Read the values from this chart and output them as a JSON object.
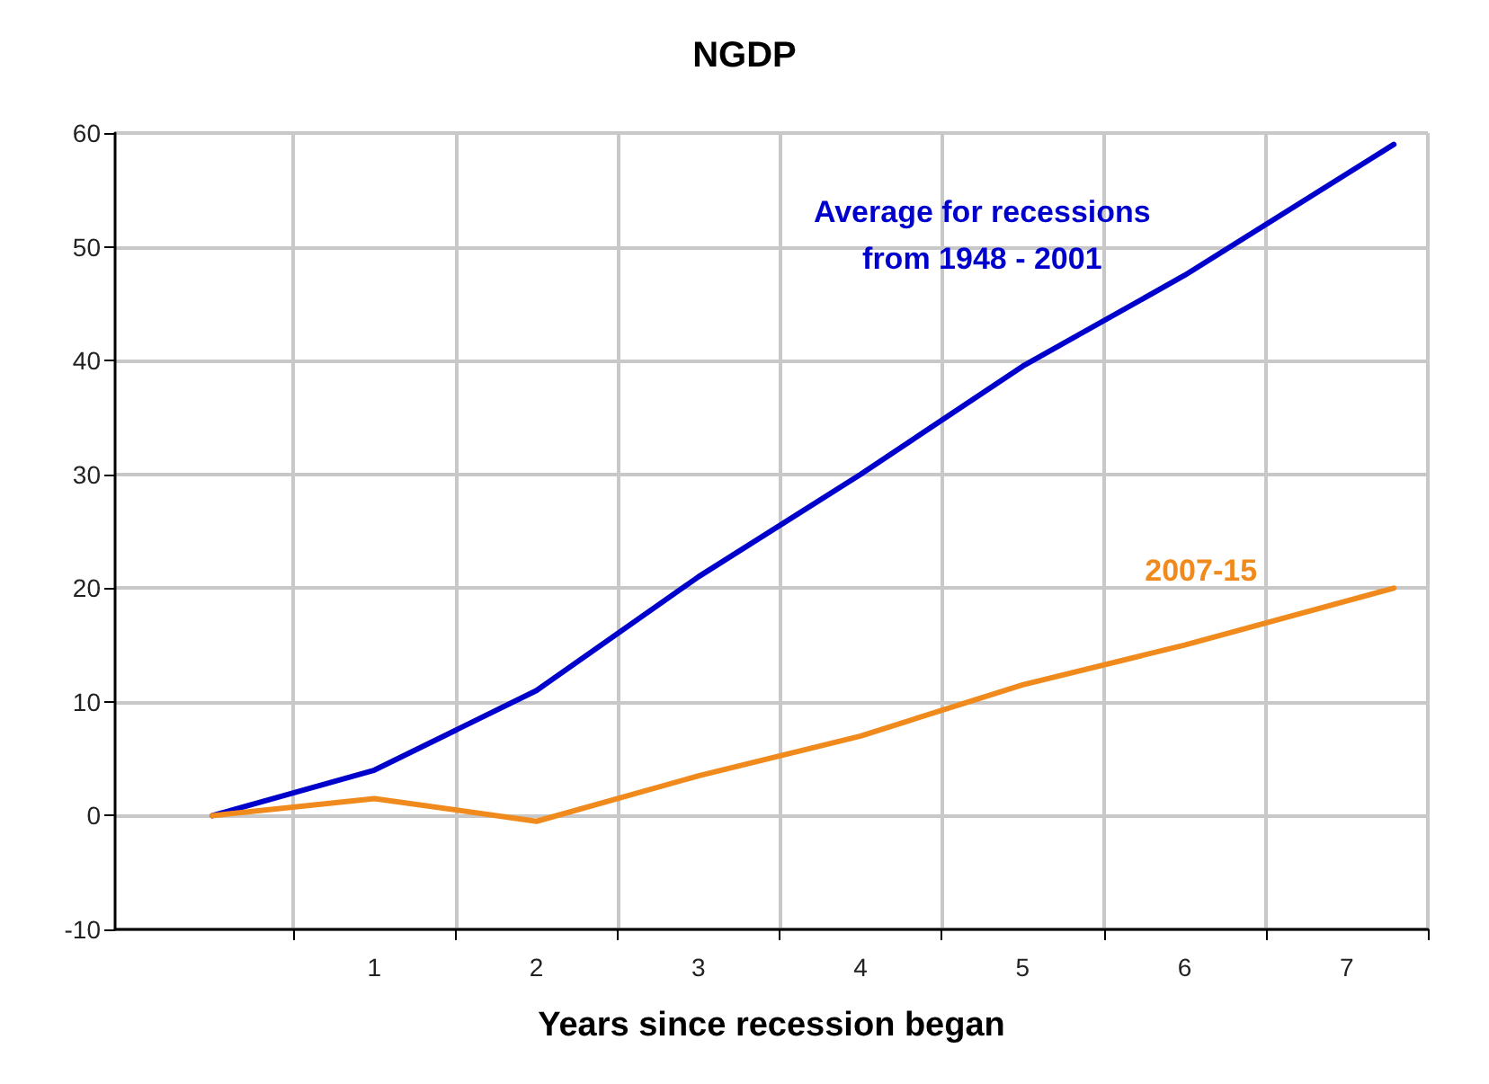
{
  "chart_data": {
    "type": "line",
    "title": "NGDP",
    "xlabel": "Years since recession began",
    "xlim": [
      -0.6,
      7.5
    ],
    "xticks": [
      {
        "value": 0.5,
        "label": null
      },
      {
        "value": 1.5,
        "label": null
      },
      {
        "value": 2.5,
        "label": null
      },
      {
        "value": 3.5,
        "label": null
      },
      {
        "value": 4.5,
        "label": null
      },
      {
        "value": 5.5,
        "label": null
      },
      {
        "value": 6.5,
        "label": null
      },
      {
        "value": 7.5,
        "label": null
      },
      1,
      2,
      3,
      4,
      5,
      6,
      7
    ],
    "ylim": [
      -10,
      60
    ],
    "yticks": [
      -10,
      0,
      10,
      20,
      30,
      40,
      50,
      60
    ],
    "grid": true,
    "legend": false,
    "marker": "none",
    "line_style": "solid",
    "series": [
      {
        "name": "Average for recessions\nfrom 1948 - 2001",
        "color": "#0000cc",
        "x": [
          0,
          1,
          2,
          3,
          4,
          5,
          6,
          7.29
        ],
        "values": [
          0,
          4,
          11,
          21,
          30,
          39.5,
          47.5,
          59
        ]
      },
      {
        "name": "2007-15",
        "color": "#f08a1c",
        "x": [
          0,
          1,
          2,
          3,
          4,
          5,
          6,
          7.29
        ],
        "values": [
          0,
          1.5,
          -0.5,
          3.5,
          7,
          11.5,
          15,
          20
        ]
      }
    ]
  }
}
